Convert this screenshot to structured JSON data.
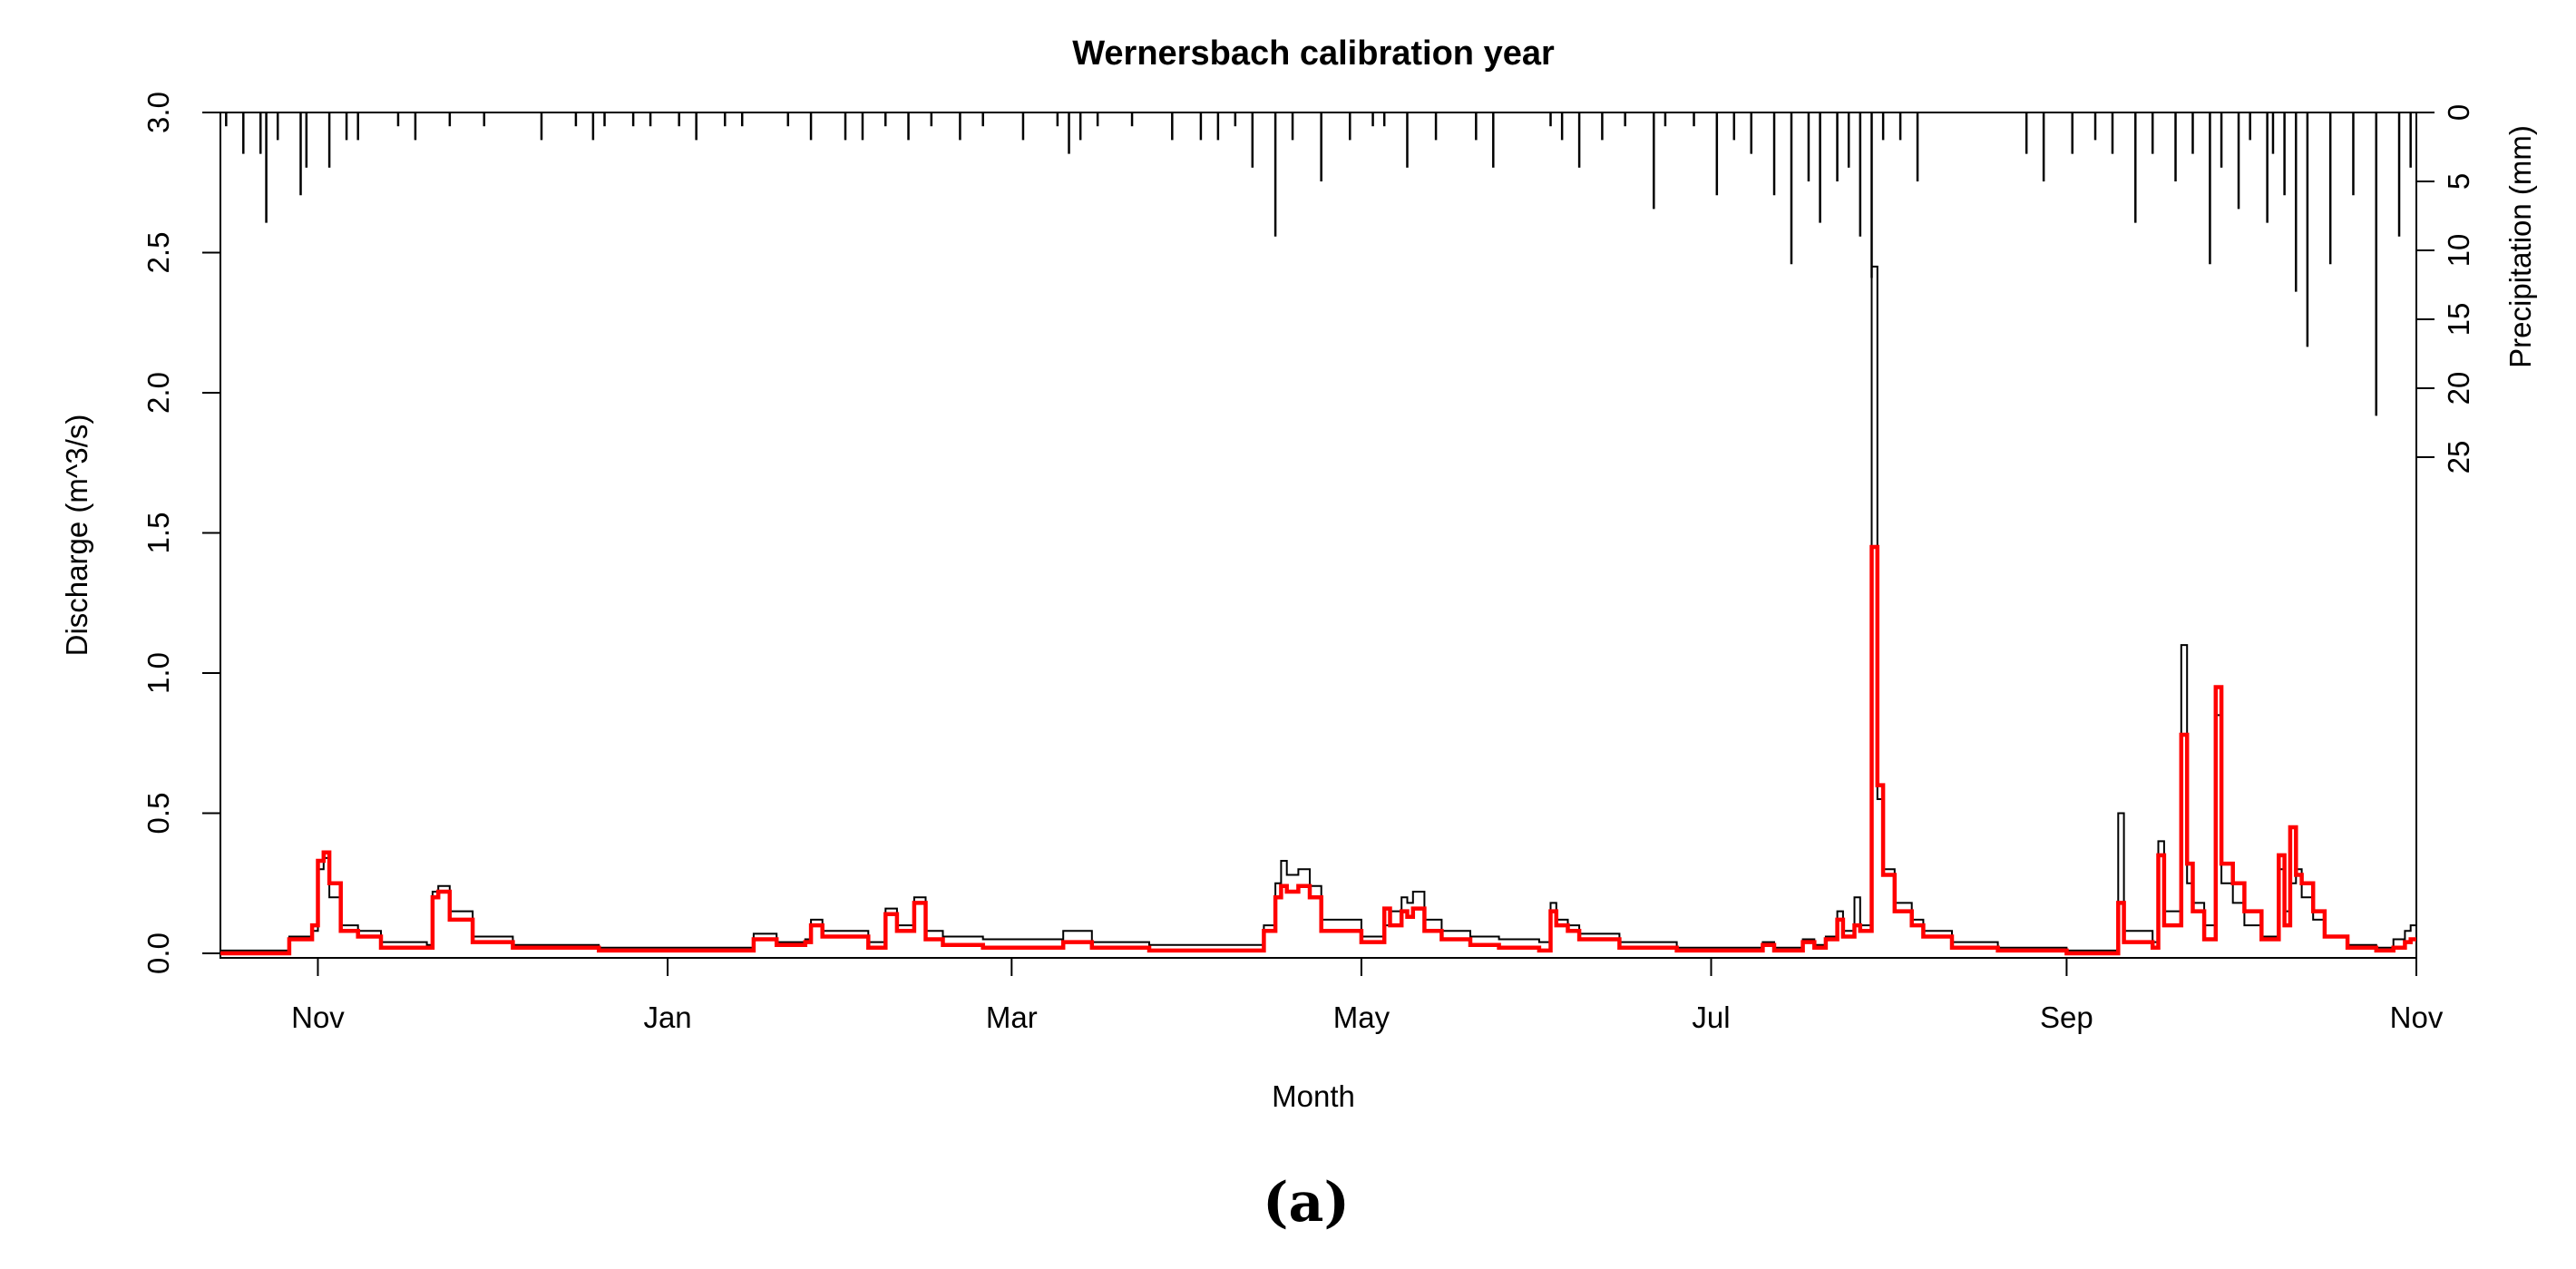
{
  "chart_data": {
    "type": "line",
    "title": "Wernersbach calibration year",
    "xlabel": "Month",
    "ylabel": "Discharge (m^3/s)",
    "y2label": "Precipitation (mm)",
    "caption": "(a)",
    "xlim": [
      "2011-10-15",
      "2012-11-01"
    ],
    "x_ticks": [
      {
        "date": "2011-11-01",
        "label": "Nov"
      },
      {
        "date": "2012-01-01",
        "label": "Jan"
      },
      {
        "date": "2012-03-01",
        "label": "Mar"
      },
      {
        "date": "2012-05-01",
        "label": "May"
      },
      {
        "date": "2012-07-01",
        "label": "Jul"
      },
      {
        "date": "2012-09-01",
        "label": "Sep"
      },
      {
        "date": "2012-11-01",
        "label": "Nov"
      }
    ],
    "ylim": [
      0,
      3.0
    ],
    "y_ticks": [
      "0.0",
      "0.5",
      "1.0",
      "1.5",
      "2.0",
      "2.5",
      "3.0"
    ],
    "y2lim_inverted": [
      0,
      42
    ],
    "y2_ticks": [
      "0",
      "5",
      "10",
      "15",
      "20",
      "25"
    ],
    "grid": false,
    "colors": {
      "observed": "#000000",
      "simulated": "#ff0000",
      "precipitation": "#000000"
    },
    "series": [
      {
        "key": "observed",
        "style": "step",
        "points": [
          [
            "2011-10-15",
            0.01
          ],
          [
            "2011-10-26",
            0.01
          ],
          [
            "2011-10-27",
            0.06
          ],
          [
            "2011-10-31",
            0.08
          ],
          [
            "2011-11-01",
            0.3
          ],
          [
            "2011-11-02",
            0.34
          ],
          [
            "2011-11-03",
            0.2
          ],
          [
            "2011-11-05",
            0.1
          ],
          [
            "2011-11-08",
            0.08
          ],
          [
            "2011-11-12",
            0.04
          ],
          [
            "2011-11-20",
            0.03
          ],
          [
            "2011-11-21",
            0.22
          ],
          [
            "2011-11-22",
            0.24
          ],
          [
            "2011-11-24",
            0.15
          ],
          [
            "2011-11-28",
            0.06
          ],
          [
            "2011-12-05",
            0.03
          ],
          [
            "2011-12-20",
            0.02
          ],
          [
            "2012-01-15",
            0.02
          ],
          [
            "2012-01-16",
            0.07
          ],
          [
            "2012-01-20",
            0.04
          ],
          [
            "2012-01-25",
            0.05
          ],
          [
            "2012-01-26",
            0.12
          ],
          [
            "2012-01-28",
            0.08
          ],
          [
            "2012-02-05",
            0.04
          ],
          [
            "2012-02-08",
            0.16
          ],
          [
            "2012-02-10",
            0.1
          ],
          [
            "2012-02-13",
            0.2
          ],
          [
            "2012-02-15",
            0.08
          ],
          [
            "2012-02-18",
            0.06
          ],
          [
            "2012-02-25",
            0.05
          ],
          [
            "2012-03-05",
            0.05
          ],
          [
            "2012-03-10",
            0.08
          ],
          [
            "2012-03-15",
            0.04
          ],
          [
            "2012-03-25",
            0.03
          ],
          [
            "2012-04-10",
            0.03
          ],
          [
            "2012-04-14",
            0.1
          ],
          [
            "2012-04-16",
            0.25
          ],
          [
            "2012-04-17",
            0.33
          ],
          [
            "2012-04-18",
            0.28
          ],
          [
            "2012-04-20",
            0.3
          ],
          [
            "2012-04-22",
            0.24
          ],
          [
            "2012-04-24",
            0.12
          ],
          [
            "2012-05-01",
            0.06
          ],
          [
            "2012-05-05",
            0.1
          ],
          [
            "2012-05-06",
            0.15
          ],
          [
            "2012-05-08",
            0.2
          ],
          [
            "2012-05-09",
            0.18
          ],
          [
            "2012-05-10",
            0.22
          ],
          [
            "2012-05-12",
            0.12
          ],
          [
            "2012-05-15",
            0.08
          ],
          [
            "2012-05-20",
            0.06
          ],
          [
            "2012-05-25",
            0.05
          ],
          [
            "2012-06-01",
            0.04
          ],
          [
            "2012-06-03",
            0.18
          ],
          [
            "2012-06-04",
            0.12
          ],
          [
            "2012-06-06",
            0.1
          ],
          [
            "2012-06-08",
            0.07
          ],
          [
            "2012-06-15",
            0.04
          ],
          [
            "2012-06-25",
            0.02
          ],
          [
            "2012-07-05",
            0.02
          ],
          [
            "2012-07-10",
            0.04
          ],
          [
            "2012-07-12",
            0.02
          ],
          [
            "2012-07-17",
            0.05
          ],
          [
            "2012-07-19",
            0.03
          ],
          [
            "2012-07-21",
            0.06
          ],
          [
            "2012-07-23",
            0.15
          ],
          [
            "2012-07-24",
            0.08
          ],
          [
            "2012-07-26",
            0.2
          ],
          [
            "2012-07-27",
            0.1
          ],
          [
            "2012-07-29",
            2.45
          ],
          [
            "2012-07-30",
            0.55
          ],
          [
            "2012-07-31",
            0.3
          ],
          [
            "2012-08-02",
            0.18
          ],
          [
            "2012-08-05",
            0.12
          ],
          [
            "2012-08-07",
            0.08
          ],
          [
            "2012-08-12",
            0.04
          ],
          [
            "2012-08-20",
            0.02
          ],
          [
            "2012-09-01",
            0.01
          ],
          [
            "2012-09-09",
            0.01
          ],
          [
            "2012-09-10",
            0.5
          ],
          [
            "2012-09-11",
            0.08
          ],
          [
            "2012-09-16",
            0.04
          ],
          [
            "2012-09-17",
            0.4
          ],
          [
            "2012-09-18",
            0.15
          ],
          [
            "2012-09-21",
            1.1
          ],
          [
            "2012-09-22",
            0.25
          ],
          [
            "2012-09-23",
            0.18
          ],
          [
            "2012-09-25",
            0.1
          ],
          [
            "2012-09-27",
            0.85
          ],
          [
            "2012-09-28",
            0.25
          ],
          [
            "2012-09-30",
            0.18
          ],
          [
            "2012-10-02",
            0.1
          ],
          [
            "2012-10-05",
            0.06
          ],
          [
            "2012-10-08",
            0.3
          ],
          [
            "2012-10-09",
            0.15
          ],
          [
            "2012-10-10",
            0.25
          ],
          [
            "2012-10-11",
            0.3
          ],
          [
            "2012-10-12",
            0.2
          ],
          [
            "2012-10-14",
            0.12
          ],
          [
            "2012-10-16",
            0.06
          ],
          [
            "2012-10-20",
            0.03
          ],
          [
            "2012-10-25",
            0.02
          ],
          [
            "2012-10-27",
            0.02
          ],
          [
            "2012-10-28",
            0.05
          ],
          [
            "2012-10-30",
            0.08
          ],
          [
            "2012-10-31",
            0.1
          ],
          [
            "2012-11-01",
            0.1
          ]
        ]
      },
      {
        "key": "simulated",
        "style": "step",
        "points": [
          [
            "2011-10-15",
            0.0
          ],
          [
            "2011-10-26",
            0.0
          ],
          [
            "2011-10-27",
            0.05
          ],
          [
            "2011-10-31",
            0.1
          ],
          [
            "2011-11-01",
            0.33
          ],
          [
            "2011-11-02",
            0.36
          ],
          [
            "2011-11-03",
            0.25
          ],
          [
            "2011-11-05",
            0.08
          ],
          [
            "2011-11-08",
            0.06
          ],
          [
            "2011-11-12",
            0.02
          ],
          [
            "2011-11-20",
            0.02
          ],
          [
            "2011-11-21",
            0.2
          ],
          [
            "2011-11-22",
            0.22
          ],
          [
            "2011-11-24",
            0.12
          ],
          [
            "2011-11-28",
            0.04
          ],
          [
            "2011-12-05",
            0.02
          ],
          [
            "2011-12-20",
            0.01
          ],
          [
            "2012-01-15",
            0.01
          ],
          [
            "2012-01-16",
            0.05
          ],
          [
            "2012-01-20",
            0.03
          ],
          [
            "2012-01-25",
            0.04
          ],
          [
            "2012-01-26",
            0.1
          ],
          [
            "2012-01-28",
            0.06
          ],
          [
            "2012-02-05",
            0.02
          ],
          [
            "2012-02-08",
            0.14
          ],
          [
            "2012-02-10",
            0.08
          ],
          [
            "2012-02-13",
            0.18
          ],
          [
            "2012-02-15",
            0.05
          ],
          [
            "2012-02-18",
            0.03
          ],
          [
            "2012-02-25",
            0.02
          ],
          [
            "2012-03-05",
            0.02
          ],
          [
            "2012-03-10",
            0.04
          ],
          [
            "2012-03-15",
            0.02
          ],
          [
            "2012-03-25",
            0.01
          ],
          [
            "2012-04-10",
            0.01
          ],
          [
            "2012-04-14",
            0.08
          ],
          [
            "2012-04-16",
            0.2
          ],
          [
            "2012-04-17",
            0.24
          ],
          [
            "2012-04-18",
            0.22
          ],
          [
            "2012-04-20",
            0.24
          ],
          [
            "2012-04-22",
            0.2
          ],
          [
            "2012-04-24",
            0.08
          ],
          [
            "2012-05-01",
            0.04
          ],
          [
            "2012-05-05",
            0.16
          ],
          [
            "2012-05-06",
            0.1
          ],
          [
            "2012-05-08",
            0.15
          ],
          [
            "2012-05-09",
            0.13
          ],
          [
            "2012-05-10",
            0.16
          ],
          [
            "2012-05-12",
            0.08
          ],
          [
            "2012-05-15",
            0.05
          ],
          [
            "2012-05-20",
            0.03
          ],
          [
            "2012-05-25",
            0.02
          ],
          [
            "2012-06-01",
            0.01
          ],
          [
            "2012-06-03",
            0.15
          ],
          [
            "2012-06-04",
            0.1
          ],
          [
            "2012-06-06",
            0.08
          ],
          [
            "2012-06-08",
            0.05
          ],
          [
            "2012-06-15",
            0.02
          ],
          [
            "2012-06-25",
            0.01
          ],
          [
            "2012-07-05",
            0.01
          ],
          [
            "2012-07-10",
            0.03
          ],
          [
            "2012-07-12",
            0.01
          ],
          [
            "2012-07-17",
            0.04
          ],
          [
            "2012-07-19",
            0.02
          ],
          [
            "2012-07-21",
            0.05
          ],
          [
            "2012-07-23",
            0.12
          ],
          [
            "2012-07-24",
            0.06
          ],
          [
            "2012-07-26",
            0.1
          ],
          [
            "2012-07-27",
            0.08
          ],
          [
            "2012-07-29",
            1.45
          ],
          [
            "2012-07-30",
            0.6
          ],
          [
            "2012-07-31",
            0.28
          ],
          [
            "2012-08-02",
            0.15
          ],
          [
            "2012-08-05",
            0.1
          ],
          [
            "2012-08-07",
            0.06
          ],
          [
            "2012-08-12",
            0.02
          ],
          [
            "2012-08-20",
            0.01
          ],
          [
            "2012-09-01",
            0.0
          ],
          [
            "2012-09-09",
            0.0
          ],
          [
            "2012-09-10",
            0.18
          ],
          [
            "2012-09-11",
            0.04
          ],
          [
            "2012-09-16",
            0.02
          ],
          [
            "2012-09-17",
            0.35
          ],
          [
            "2012-09-18",
            0.1
          ],
          [
            "2012-09-21",
            0.78
          ],
          [
            "2012-09-22",
            0.32
          ],
          [
            "2012-09-23",
            0.15
          ],
          [
            "2012-09-25",
            0.05
          ],
          [
            "2012-09-27",
            0.95
          ],
          [
            "2012-09-28",
            0.32
          ],
          [
            "2012-09-30",
            0.25
          ],
          [
            "2012-10-02",
            0.15
          ],
          [
            "2012-10-05",
            0.05
          ],
          [
            "2012-10-08",
            0.35
          ],
          [
            "2012-10-09",
            0.1
          ],
          [
            "2012-10-10",
            0.45
          ],
          [
            "2012-10-11",
            0.28
          ],
          [
            "2012-10-12",
            0.25
          ],
          [
            "2012-10-14",
            0.15
          ],
          [
            "2012-10-16",
            0.06
          ],
          [
            "2012-10-20",
            0.02
          ],
          [
            "2012-10-25",
            0.01
          ],
          [
            "2012-10-27",
            0.01
          ],
          [
            "2012-10-28",
            0.02
          ],
          [
            "2012-10-30",
            0.04
          ],
          [
            "2012-10-31",
            0.05
          ],
          [
            "2012-11-01",
            0.05
          ]
        ]
      }
    ],
    "precipitation": {
      "dates": [
        "2011-10-16",
        "2011-10-19",
        "2011-10-22",
        "2011-10-23",
        "2011-10-25",
        "2011-10-29",
        "2011-10-30",
        "2011-11-03",
        "2011-11-06",
        "2011-11-08",
        "2011-11-15",
        "2011-11-18",
        "2011-11-24",
        "2011-11-30",
        "2011-12-10",
        "2011-12-16",
        "2011-12-19",
        "2011-12-21",
        "2011-12-26",
        "2011-12-29",
        "2012-01-03",
        "2012-01-06",
        "2012-01-11",
        "2012-01-14",
        "2012-01-22",
        "2012-01-26",
        "2012-02-01",
        "2012-02-04",
        "2012-02-08",
        "2012-02-12",
        "2012-02-16",
        "2012-02-21",
        "2012-02-25",
        "2012-03-03",
        "2012-03-09",
        "2012-03-11",
        "2012-03-13",
        "2012-03-16",
        "2012-03-22",
        "2012-03-29",
        "2012-04-03",
        "2012-04-06",
        "2012-04-09",
        "2012-04-12",
        "2012-04-16",
        "2012-04-19",
        "2012-04-24",
        "2012-04-29",
        "2012-05-03",
        "2012-05-05",
        "2012-05-09",
        "2012-05-14",
        "2012-05-21",
        "2012-05-24",
        "2012-06-03",
        "2012-06-05",
        "2012-06-08",
        "2012-06-12",
        "2012-06-16",
        "2012-06-21",
        "2012-06-23",
        "2012-06-28",
        "2012-07-02",
        "2012-07-05",
        "2012-07-08",
        "2012-07-12",
        "2012-07-15",
        "2012-07-18",
        "2012-07-20",
        "2012-07-23",
        "2012-07-25",
        "2012-07-27",
        "2012-07-29",
        "2012-07-31",
        "2012-08-03",
        "2012-08-06",
        "2012-08-25",
        "2012-08-28",
        "2012-09-02",
        "2012-09-06",
        "2012-09-09",
        "2012-09-13",
        "2012-09-16",
        "2012-09-20",
        "2012-09-23",
        "2012-09-26",
        "2012-09-28",
        "2012-10-01",
        "2012-10-03",
        "2012-10-06",
        "2012-10-07",
        "2012-10-09",
        "2012-10-11",
        "2012-10-13",
        "2012-10-17",
        "2012-10-21",
        "2012-10-25",
        "2012-10-29",
        "2012-10-31"
      ],
      "values": [
        1,
        3,
        3,
        8,
        2,
        6,
        4,
        4,
        2,
        2,
        1,
        2,
        1,
        1,
        2,
        1,
        2,
        1,
        1,
        1,
        1,
        2,
        1,
        1,
        1,
        2,
        2,
        2,
        1,
        2,
        1,
        2,
        1,
        2,
        1,
        3,
        2,
        1,
        1,
        2,
        2,
        2,
        1,
        4,
        9,
        2,
        5,
        2,
        1,
        1,
        4,
        2,
        2,
        4,
        1,
        2,
        4,
        2,
        1,
        7,
        1,
        1,
        6,
        2,
        3,
        6,
        11,
        5,
        8,
        5,
        4,
        9,
        12,
        2,
        2,
        5,
        3,
        5,
        3,
        2,
        3,
        8,
        3,
        5,
        3,
        11,
        4,
        7,
        2,
        8,
        3,
        6,
        13,
        17,
        11,
        6,
        22,
        9,
        4
      ]
    }
  }
}
